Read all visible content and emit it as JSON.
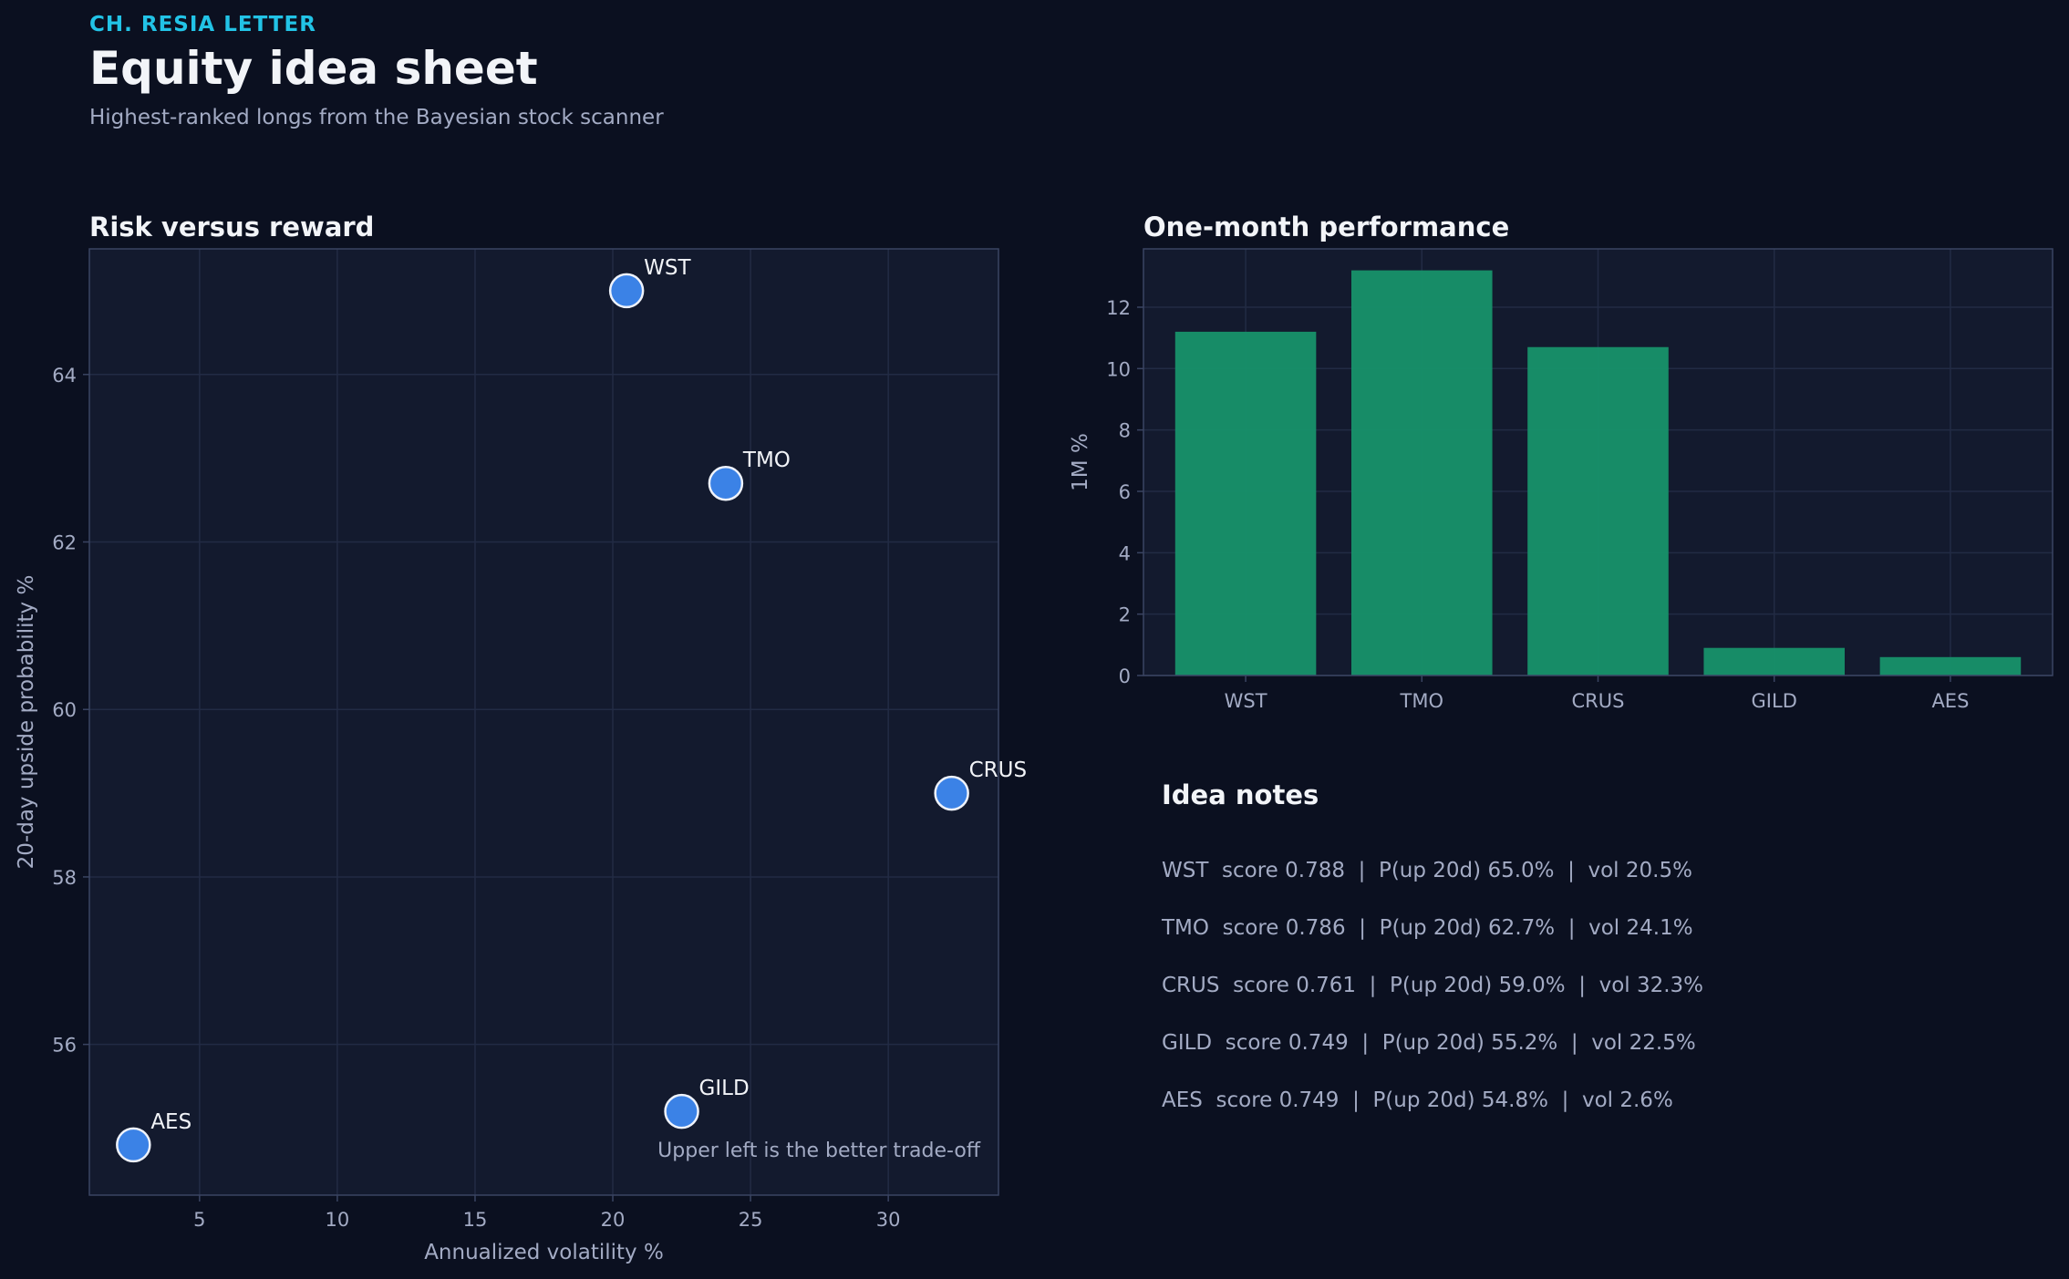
{
  "header": {
    "eyebrow": "CH. RESIA LETTER",
    "title": "Equity idea sheet",
    "subtitle": "Highest-ranked longs from the Bayesian stock scanner"
  },
  "colors": {
    "background": "#0b1020",
    "panel": "#131a2e",
    "accent_cyan": "#22c3e6",
    "point_blue": "#3b82e6",
    "bar_green": "#17926a"
  },
  "chart_data": [
    {
      "type": "scatter",
      "title": "Risk versus reward",
      "xlabel": "Annualized volatility %",
      "ylabel": "20-day upside probability %",
      "xlim": [
        1,
        34
      ],
      "ylim": [
        54.2,
        65.5
      ],
      "xticks": [
        5,
        10,
        15,
        20,
        25,
        30
      ],
      "yticks": [
        56,
        58,
        60,
        62,
        64
      ],
      "grid": true,
      "annotation": "Upper left is the better trade-off",
      "points": [
        {
          "label": "WST",
          "x": 20.5,
          "y": 65.0
        },
        {
          "label": "TMO",
          "x": 24.1,
          "y": 62.7
        },
        {
          "label": "CRUS",
          "x": 32.3,
          "y": 59.0
        },
        {
          "label": "GILD",
          "x": 22.5,
          "y": 55.2
        },
        {
          "label": "AES",
          "x": 2.6,
          "y": 54.8
        }
      ]
    },
    {
      "type": "bar",
      "title": "One-month performance",
      "xlabel": "",
      "ylabel": "1M %",
      "ylim": [
        0,
        13.9
      ],
      "yticks": [
        0,
        2,
        4,
        6,
        8,
        10,
        12
      ],
      "grid": true,
      "categories": [
        "WST",
        "TMO",
        "CRUS",
        "GILD",
        "AES"
      ],
      "values": [
        11.2,
        13.2,
        10.7,
        0.9,
        0.6
      ]
    }
  ],
  "notes": {
    "title": "Idea notes",
    "lines": [
      "WST  score 0.788  |  P(up 20d) 65.0%  |  vol 20.5%",
      "TMO  score 0.786  |  P(up 20d) 62.7%  |  vol 24.1%",
      "CRUS  score 0.761  |  P(up 20d) 59.0%  |  vol 32.3%",
      "GILD  score 0.749  |  P(up 20d) 55.2%  |  vol 22.5%",
      "AES  score 0.749  |  P(up 20d) 54.8%  |  vol 2.6%"
    ]
  }
}
